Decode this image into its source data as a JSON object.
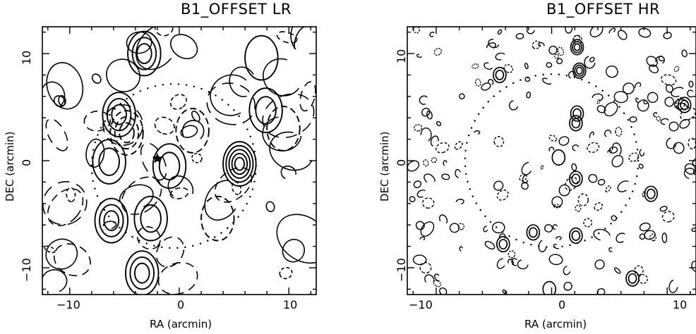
{
  "panels": [
    {
      "title": "B1_OFFSET LR",
      "xlabel": "RA (arcmin)",
      "ylabel": "DEC (arcmin)",
      "xticks": [
        "−10",
        "0",
        "10"
      ],
      "yticks": [
        "−10",
        "0",
        "10"
      ]
    },
    {
      "title": "B1_OFFSET HR",
      "xlabel": "RA (arcmin)",
      "ylabel": "DEC (arcmin)",
      "xticks": [
        "−10",
        "0",
        "10"
      ],
      "yticks": [
        "−10",
        "0",
        "10"
      ]
    }
  ],
  "chart_data": [
    {
      "type": "contour",
      "title": "B1_OFFSET LR",
      "xlabel": "RA (arcmin)",
      "ylabel": "DEC (arcmin)",
      "xlim": [
        -12.5,
        12.5
      ],
      "ylim": [
        -12.5,
        12.5
      ],
      "xticks": [
        -10,
        0,
        10
      ],
      "yticks": [
        -10,
        0,
        10
      ],
      "marker": {
        "symbol": "star",
        "x": -2,
        "y": 0.2
      },
      "dotted_circle": {
        "center": [
          -0.5,
          -0.5
        ],
        "radius": 7.5
      },
      "sources": [
        {
          "x": 5.5,
          "y": -0.3,
          "levels": 5,
          "sign": 1
        },
        {
          "x": -6.2,
          "y": -5.6,
          "levels": 3,
          "sign": 1
        },
        {
          "x": -3.4,
          "y": -10.5,
          "levels": 3,
          "sign": 1
        },
        {
          "x": -3.2,
          "y": 10,
          "levels": 3,
          "sign": 1
        },
        {
          "x": -5.5,
          "y": 4.3,
          "levels": 3,
          "sign": 1
        },
        {
          "x": -6.4,
          "y": -0.1,
          "levels": 2,
          "sign": 1
        },
        {
          "x": -4.8,
          "y": 2.6,
          "levels": 3,
          "sign": -1
        },
        {
          "x": -0.9,
          "y": -0.5,
          "levels": 2,
          "sign": 1
        },
        {
          "x": -2.6,
          "y": -5.4,
          "levels": 2,
          "sign": 1
        },
        {
          "x": 7.9,
          "y": 4.7,
          "levels": 2,
          "sign": 1
        },
        {
          "x": 7.5,
          "y": 9.6,
          "levels": 1,
          "sign": 1
        },
        {
          "x": 1.2,
          "y": 2.8,
          "levels": 1,
          "sign": -1
        },
        {
          "x": 3.5,
          "y": -5.4,
          "levels": 1,
          "sign": -1
        },
        {
          "x": 9.5,
          "y": 3,
          "levels": 1,
          "sign": -1
        }
      ]
    },
    {
      "type": "contour",
      "title": "B1_OFFSET HR",
      "xlabel": "RA (arcmin)",
      "ylabel": "DEC (arcmin)",
      "xlim": [
        -12.5,
        12.5
      ],
      "ylim": [
        -12.5,
        12.5
      ],
      "xticks": [
        -10,
        0,
        10
      ],
      "yticks": [
        -10,
        0,
        10
      ],
      "dotted_circle": {
        "center": [
          0,
          0
        ],
        "radius": 7.5
      },
      "sources": [
        {
          "x": 2.2,
          "y": 10.6,
          "levels": 3,
          "sign": 1
        },
        {
          "x": 2.4,
          "y": 8.4,
          "levels": 3,
          "sign": 1
        },
        {
          "x": -4.5,
          "y": 8,
          "levels": 2,
          "sign": 1
        },
        {
          "x": 11.5,
          "y": 5.2,
          "levels": 2,
          "sign": 1
        },
        {
          "x": 2.2,
          "y": 4.4,
          "levels": 2,
          "sign": 1
        },
        {
          "x": 2.1,
          "y": 3.5,
          "levels": 2,
          "sign": 1
        },
        {
          "x": 0.6,
          "y": 0.3,
          "levels": 1,
          "sign": 1
        },
        {
          "x": 2.1,
          "y": -1.7,
          "levels": 2,
          "sign": 1
        },
        {
          "x": 2.1,
          "y": -7,
          "levels": 2,
          "sign": 1
        },
        {
          "x": -1.6,
          "y": -6.7,
          "levels": 2,
          "sign": 1
        },
        {
          "x": -4.2,
          "y": -7.8,
          "levels": 2,
          "sign": 1
        },
        {
          "x": 7,
          "y": -11,
          "levels": 2,
          "sign": 1
        },
        {
          "x": 8.6,
          "y": -3.1,
          "levels": 2,
          "sign": 1
        },
        {
          "x": -0.2,
          "y": -12,
          "levels": 1,
          "sign": 1
        }
      ]
    }
  ]
}
